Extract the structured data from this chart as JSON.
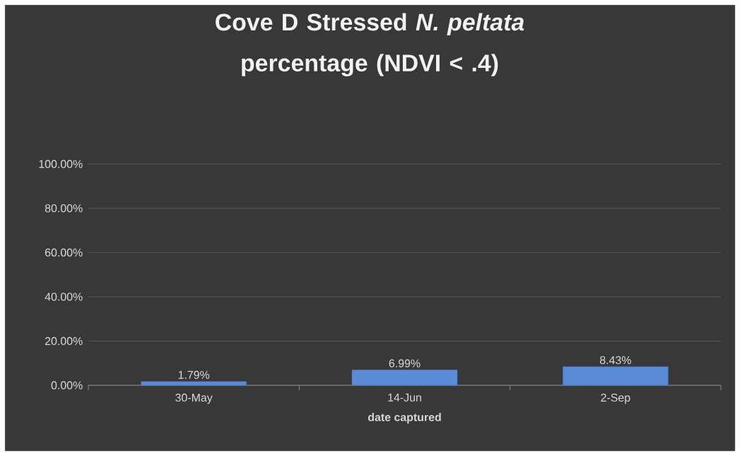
{
  "chart_data": {
    "type": "bar",
    "title": "Cove D Stressed *N. peltata* percentage (NDVI < .4)",
    "xlabel": "date captured",
    "categories": [
      "30-May",
      "14-Jun",
      "2-Sep"
    ],
    "values": [
      1.79,
      6.99,
      8.43
    ],
    "value_labels": [
      "1.79%",
      "6.99%",
      "8.43%"
    ],
    "color": "#5b8bd5",
    "ylim": [
      0,
      100
    ],
    "yticks": [
      {
        "value": 0,
        "label": "0.00%"
      },
      {
        "value": 20,
        "label": "20.00%"
      },
      {
        "value": 40,
        "label": "40.00%"
      },
      {
        "value": 60,
        "label": "60.00%"
      },
      {
        "value": 80,
        "label": "80.00%"
      },
      {
        "value": 100,
        "label": "100.00%"
      }
    ],
    "grid": "y"
  }
}
